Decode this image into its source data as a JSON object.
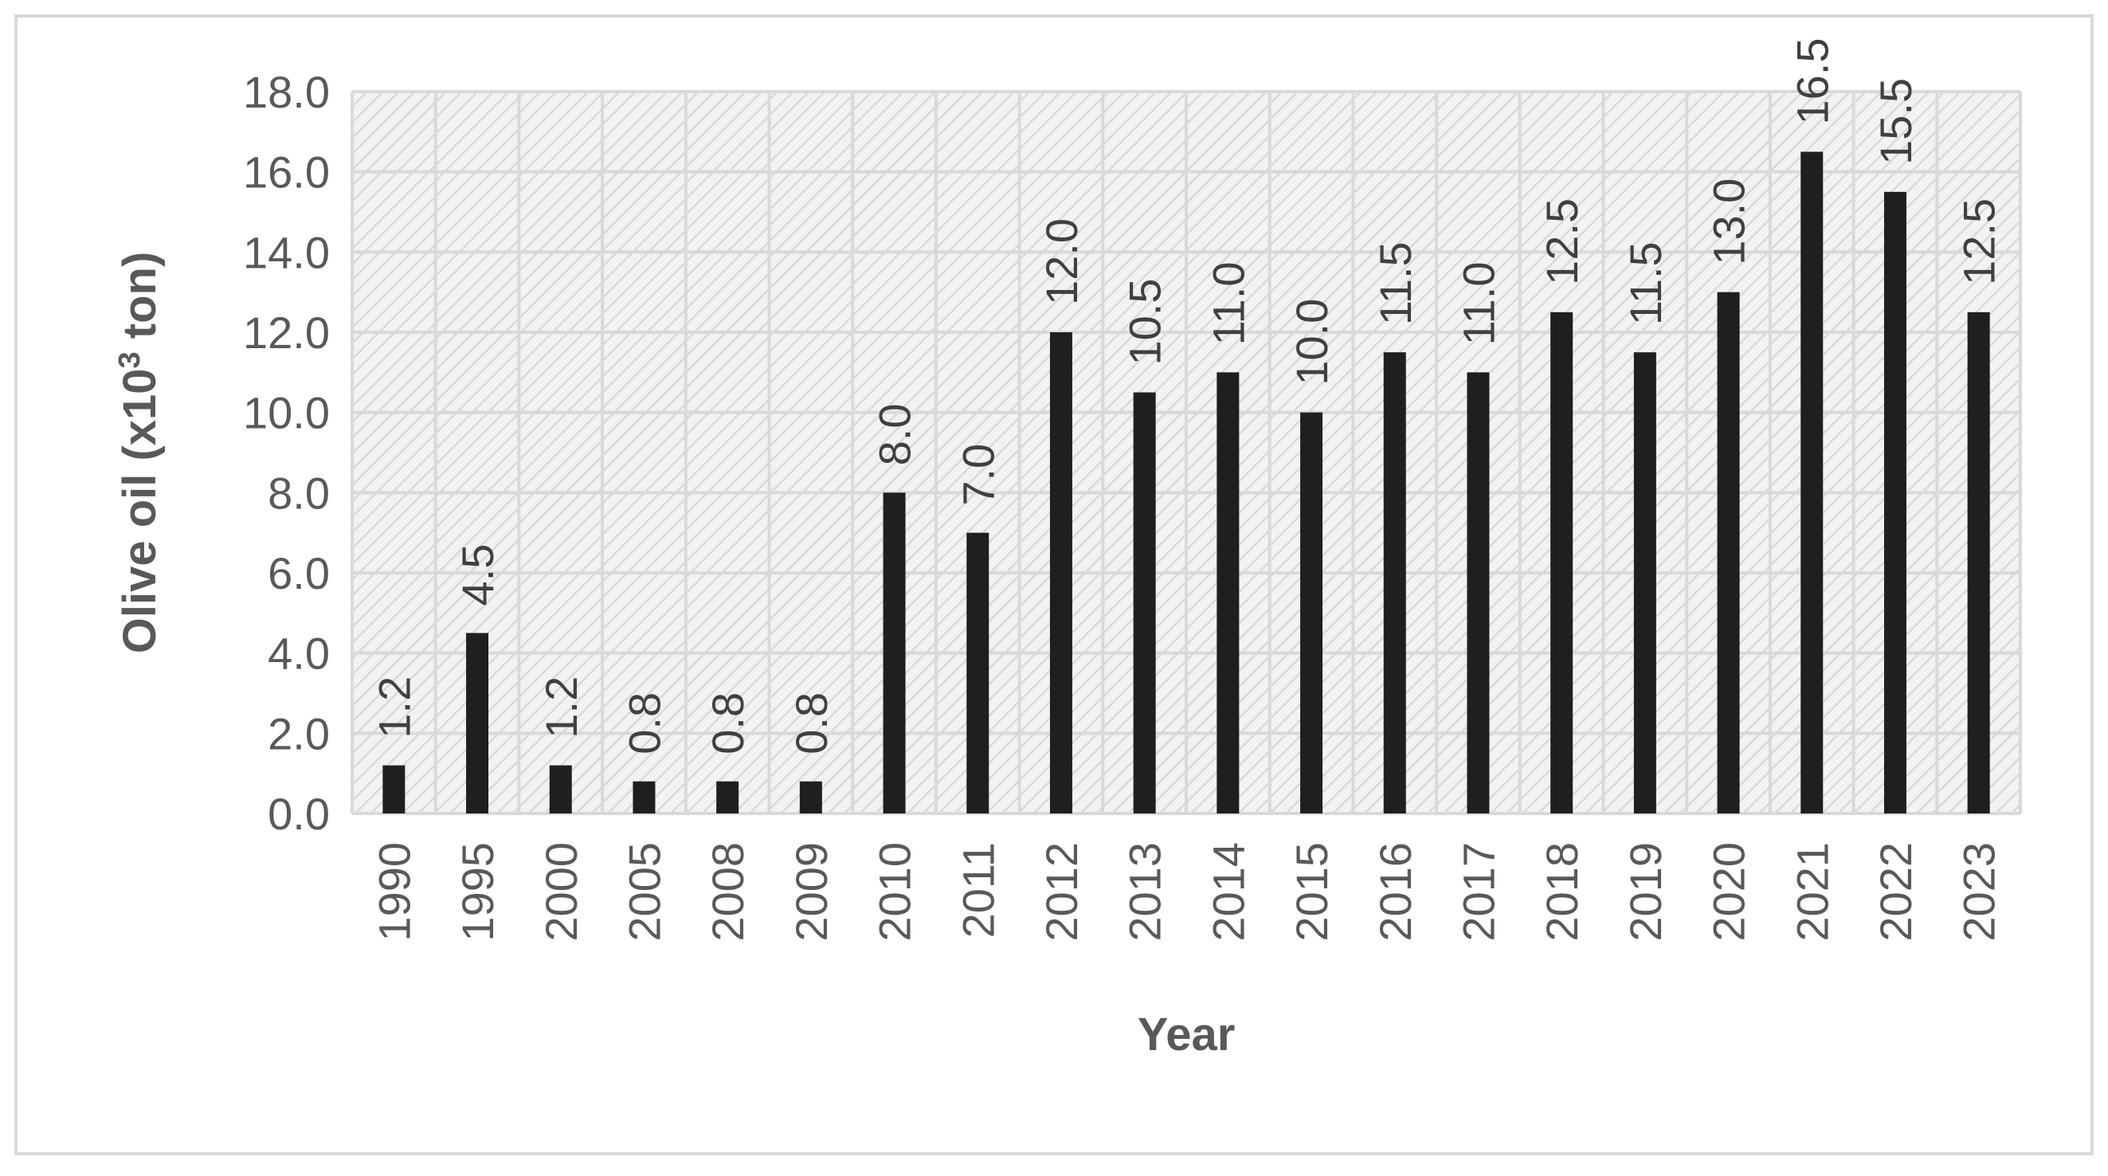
{
  "chart_data": {
    "type": "bar",
    "title": "",
    "xlabel": "Year",
    "ylabel_main": "Olive oil (x10",
    "ylabel_sup": "3",
    "ylabel_tail": " ton)",
    "categories": [
      "1990",
      "1995",
      "2000",
      "2005",
      "2008",
      "2009",
      "2010",
      "2011",
      "2012",
      "2013",
      "2014",
      "2015",
      "2016",
      "2017",
      "2018",
      "2019",
      "2020",
      "2021",
      "2022",
      "2023"
    ],
    "values": [
      1.2,
      4.5,
      1.2,
      0.8,
      0.8,
      0.8,
      8.0,
      7.0,
      12.0,
      10.5,
      11.0,
      10.0,
      11.5,
      11.0,
      12.5,
      11.5,
      13.0,
      16.5,
      15.5,
      12.5
    ],
    "data_labels": [
      "1.2",
      "4.5",
      "1.2",
      "0.8",
      "0.8",
      "0.8",
      "8.0",
      "7.0",
      "12.0",
      "10.5",
      "11.0",
      "10.0",
      "11.5",
      "11.0",
      "12.5",
      "11.5",
      "13.0",
      "16.5",
      "15.5",
      "12.5"
    ],
    "ylim": [
      0,
      18
    ],
    "yticks": [
      "0.0",
      "2.0",
      "4.0",
      "6.0",
      "8.0",
      "10.0",
      "12.0",
      "14.0",
      "16.0",
      "18.0"
    ],
    "grid": true,
    "legend": "none",
    "colors": {
      "bar": "#1f1f1f",
      "plot_background": "#f2f2f2",
      "hatch": "#d9d9d9",
      "grid": "#d9d9d9",
      "text": "#595959",
      "data_label_text": "#404040",
      "frame": "#d9d9d9"
    }
  }
}
